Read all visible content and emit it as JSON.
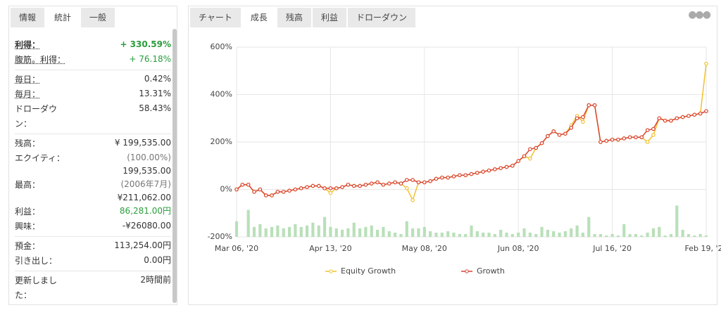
{
  "left_panel": {
    "tabs": [
      "情報",
      "統計",
      "一般"
    ],
    "active_tab": 1,
    "groups": [
      [
        {
          "label": "利得：",
          "value": "+ 330.59%",
          "color": "#2a9d3c",
          "strong": true
        },
        {
          "label": "腹筋。利得：",
          "value": "+ 76.18%",
          "color": "#2a9d3c"
        }
      ],
      [
        {
          "label": "毎日：",
          "value": "0.42%"
        },
        {
          "label": "毎月：",
          "value": "13.31%"
        },
        {
          "label": "ドローダウン：",
          "value": "58.43%"
        }
      ],
      [
        {
          "label": "残高：",
          "value": "¥ 199,535.00"
        },
        {
          "label": "エクイティ：",
          "note": "(100.00%)",
          "value": "199,535.00"
        },
        {
          "label": "最高：",
          "note": "(2006年7月)",
          "value": "¥211,062.00"
        },
        {
          "label": "利益：",
          "value": "86,281.00円",
          "color": "#2a9d3c"
        },
        {
          "label": "興味：",
          "value": "-¥26080.00"
        }
      ],
      [
        {
          "label": "預金：",
          "value": "113,254.00円"
        },
        {
          "label": "引き出し：",
          "value": "0.00円"
        }
      ],
      [
        {
          "label": "更新しました：",
          "value": "2時間前"
        }
      ]
    ]
  },
  "right_panel": {
    "tabs": [
      "チャート",
      "成長",
      "残高",
      "利益",
      "ドローダウン"
    ],
    "active_tab": 1
  },
  "chart_data": {
    "type": "line",
    "categories": [
      "Mar 06, '20",
      null,
      null,
      null,
      null,
      null,
      null,
      null,
      null,
      null,
      null,
      null,
      null,
      null,
      null,
      null,
      "Apr 13, '20",
      null,
      null,
      null,
      null,
      null,
      null,
      null,
      null,
      null,
      null,
      null,
      null,
      null,
      null,
      null,
      "May 08, '20",
      null,
      null,
      null,
      null,
      null,
      null,
      null,
      null,
      null,
      null,
      null,
      null,
      null,
      null,
      null,
      "Jun 08, '20",
      null,
      null,
      null,
      null,
      null,
      null,
      null,
      null,
      null,
      null,
      null,
      null,
      null,
      null,
      null,
      "Jul 16, '20",
      null,
      null,
      null,
      null,
      null,
      null,
      null,
      null,
      null,
      null,
      null,
      null,
      null,
      null,
      null,
      "Feb 19, '21"
    ],
    "series": [
      {
        "name": "Equity Growth",
        "color": "#f2c12e",
        "values": [
          0,
          20,
          20,
          -10,
          0,
          -25,
          -25,
          -10,
          -10,
          -5,
          0,
          5,
          10,
          15,
          15,
          5,
          -15,
          5,
          10,
          20,
          15,
          15,
          20,
          25,
          30,
          20,
          25,
          30,
          25,
          5,
          -45,
          30,
          30,
          35,
          45,
          50,
          50,
          55,
          60,
          60,
          65,
          70,
          75,
          80,
          85,
          90,
          95,
          100,
          120,
          140,
          130,
          175,
          195,
          225,
          245,
          230,
          235,
          270,
          310,
          285,
          355,
          355,
          200,
          205,
          210,
          210,
          215,
          220,
          220,
          220,
          200,
          230,
          300,
          290,
          290,
          300,
          305,
          310,
          315,
          320,
          530
        ]
      },
      {
        "name": "Growth",
        "color": "#d9432f",
        "values": [
          0,
          20,
          20,
          -10,
          0,
          -25,
          -25,
          -10,
          -10,
          -5,
          0,
          5,
          10,
          15,
          15,
          5,
          5,
          5,
          10,
          20,
          15,
          15,
          20,
          25,
          30,
          20,
          25,
          30,
          25,
          40,
          40,
          30,
          30,
          35,
          45,
          50,
          50,
          55,
          60,
          60,
          65,
          70,
          75,
          80,
          85,
          90,
          95,
          100,
          120,
          140,
          170,
          175,
          195,
          225,
          245,
          230,
          235,
          260,
          300,
          305,
          355,
          355,
          200,
          205,
          210,
          210,
          215,
          220,
          220,
          220,
          250,
          255,
          300,
          290,
          290,
          300,
          305,
          310,
          315,
          320,
          330
        ]
      }
    ],
    "volume": {
      "color": "#b9e0b9",
      "values": [
        -134,
        -200,
        -86,
        -158,
        -146,
        -164,
        -158,
        -152,
        -164,
        -158,
        -146,
        -158,
        -152,
        -140,
        -152,
        -116,
        -158,
        -164,
        -170,
        -164,
        -140,
        -164,
        -158,
        -152,
        -170,
        -158,
        -176,
        -182,
        -188,
        -134,
        -164,
        -164,
        -158,
        -176,
        -182,
        -182,
        -176,
        -182,
        -188,
        -188,
        -152,
        -176,
        -182,
        -182,
        -188,
        -170,
        -182,
        -188,
        -182,
        -164,
        -182,
        -188,
        -158,
        -170,
        -176,
        -182,
        -176,
        -164,
        -152,
        -182,
        -116,
        -188,
        -188,
        -194,
        -188,
        -194,
        -146,
        -188,
        -188,
        -194,
        -182,
        -164,
        -158,
        -194,
        -188,
        -68,
        -170,
        -188,
        -194,
        -188,
        -194
      ]
    },
    "ylim": [
      -200,
      600
    ],
    "yticks": [
      {
        "value": -200,
        "label": "-200%"
      },
      {
        "value": 0,
        "label": "0%"
      },
      {
        "value": 200,
        "label": "200%"
      },
      {
        "value": 400,
        "label": "400%"
      },
      {
        "value": 600,
        "label": "600%"
      }
    ],
    "grid": true,
    "legend": "bottom"
  }
}
